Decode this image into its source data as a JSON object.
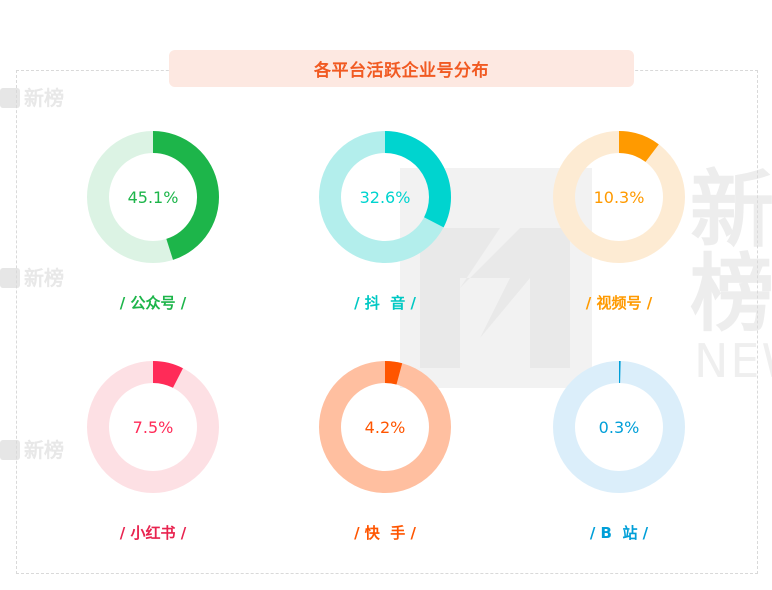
{
  "title": "各平台活跃企业号分布",
  "chart_data": [
    {
      "type": "pie",
      "subtype": "donut",
      "category": "公众号",
      "label": "/ 公众号 /",
      "value": 45.1,
      "value_label": "45.1%",
      "color": "#1db54a",
      "track_color": "#dcf3e4"
    },
    {
      "type": "pie",
      "subtype": "donut",
      "category": "抖音",
      "label": "/ 抖  音 /",
      "value": 32.6,
      "value_label": "32.6%",
      "color": "#00d4cf",
      "track_color": "#b3eeec"
    },
    {
      "type": "pie",
      "subtype": "donut",
      "category": "视频号",
      "label": "/ 视频号 /",
      "value": 10.3,
      "value_label": "10.3%",
      "color": "#ff9a00",
      "track_color": "#fdebd3"
    },
    {
      "type": "pie",
      "subtype": "donut",
      "category": "小红书",
      "label": "/ 小红书 /",
      "value": 7.5,
      "value_label": "7.5%",
      "color": "#ff2b58",
      "track_color": "#fde0e4"
    },
    {
      "type": "pie",
      "subtype": "donut",
      "category": "快手",
      "label": "/ 快  手 /",
      "value": 4.2,
      "value_label": "4.2%",
      "color": "#ff5500",
      "track_color": "#ffbfa0"
    },
    {
      "type": "pie",
      "subtype": "donut",
      "category": "B站",
      "label": "/ B  站 /",
      "value": 0.3,
      "value_label": "0.3%",
      "color": "#009fd8",
      "track_color": "#dbeefa"
    }
  ],
  "label_colors": [
    "#1db54a",
    "#00c8c3",
    "#ff9a00",
    "#e8234f",
    "#ff5500",
    "#009fd8"
  ],
  "watermark": {
    "brand": "新榜",
    "sub": "NEW"
  }
}
